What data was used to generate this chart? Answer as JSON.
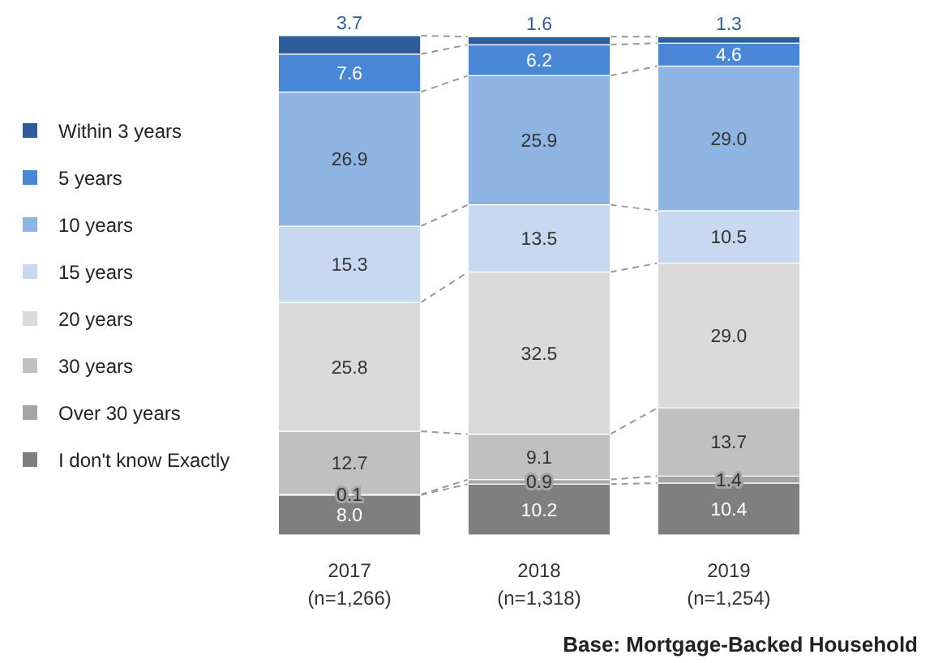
{
  "chart_data": {
    "type": "bar",
    "stacked": true,
    "legend": "left",
    "categories": [
      "2017\n(n=1,266)",
      "2018\n(n=1,318)",
      "2019\n(n=1,254)"
    ],
    "series": [
      {
        "name": "I don't know Exactly",
        "color": "#7f7f7f",
        "values": [
          8.0,
          10.2,
          10.4
        ],
        "value_labels": [
          "8.0",
          "10.2",
          "10.4"
        ]
      },
      {
        "name": "Over 30 years",
        "color": "#a5a5a5",
        "values": [
          0.1,
          0.9,
          1.4
        ],
        "value_labels": [
          "0.1",
          "0.9",
          "1.4"
        ]
      },
      {
        "name": "30 years",
        "color": "#c0c0c0",
        "values": [
          12.7,
          9.1,
          13.7
        ],
        "value_labels": [
          "12.7",
          "9.1",
          "13.7"
        ]
      },
      {
        "name": "20 years",
        "color": "#dadada",
        "values": [
          25.8,
          32.5,
          29.0
        ],
        "value_labels": [
          "25.8",
          "32.5",
          "29.0"
        ]
      },
      {
        "name": "15 years",
        "color": "#c6d9f1",
        "values": [
          15.3,
          13.5,
          10.5
        ],
        "value_labels": [
          "15.3",
          "13.5",
          "10.5"
        ]
      },
      {
        "name": "10 years",
        "color": "#8eb4e3",
        "values": [
          26.9,
          25.9,
          29.0
        ],
        "value_labels": [
          "26.9",
          "25.9",
          "29.0"
        ]
      },
      {
        "name": "5 years",
        "color": "#4a86d6",
        "values": [
          7.6,
          6.2,
          4.6
        ],
        "value_labels": [
          "7.6",
          "6.2",
          "4.6"
        ]
      },
      {
        "name": "Within 3 years",
        "color": "#2f5c9a",
        "values": [
          3.7,
          1.6,
          1.3
        ],
        "value_labels": [
          "3.7",
          "1.6",
          "1.3"
        ]
      }
    ],
    "annotations": [
      "Base: Mortgage-Backed Household"
    ]
  }
}
